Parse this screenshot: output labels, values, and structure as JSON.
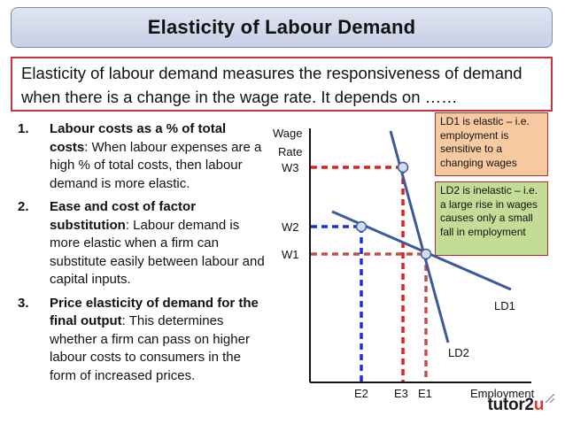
{
  "title": "Elasticity of Labour Demand",
  "intro": "Elasticity of labour demand measures the responsiveness of demand when there is a change in the wage rate. It depends on ……",
  "points": [
    {
      "number": "1.",
      "heading": "Labour costs as a % of total costs",
      "body": ": When labour expenses are a high % of total costs, then labour demand is more elastic."
    },
    {
      "number": "2.",
      "heading": "Ease and cost of factor substitution",
      "body": ": Labour demand is more elastic when a firm can substitute easily between labour and capital inputs."
    },
    {
      "number": "3.",
      "heading": "Price elasticity of demand for the final output",
      "body": ": This determines whether a firm can pass on higher labour costs to consumers in the form of increased prices."
    }
  ],
  "callouts": {
    "ld1": "LD1 is elastic – i.e. employment is sensitive to a changing wages",
    "ld2": "LD2 is inelastic – i.e. a large rise in wages causes only a small fall in employment"
  },
  "chart_labels": {
    "y_axis_line1": "Wage",
    "y_axis_line2": "Rate",
    "x_axis": "Employment",
    "w1": "W1",
    "w2": "W2",
    "w3": "W3",
    "e1": "E1",
    "e2": "E2",
    "e3": "E3",
    "ld1": "LD1",
    "ld2": "LD2"
  },
  "colors": {
    "w3_projection": "#e02020",
    "w2_projection": "#1a2fd6",
    "w1_projection": "#c0504d",
    "curve": "#3b5a9a",
    "axis": "#111111",
    "ld1_callout_fill": "#f7c9a1",
    "ld2_callout_fill": "#c4dd96",
    "callout_border": "#c62828",
    "title_fill": "#d3d9eb",
    "intro_border": "#c8343b"
  },
  "logo": {
    "main": "tutor2",
    "accent": "u"
  }
}
